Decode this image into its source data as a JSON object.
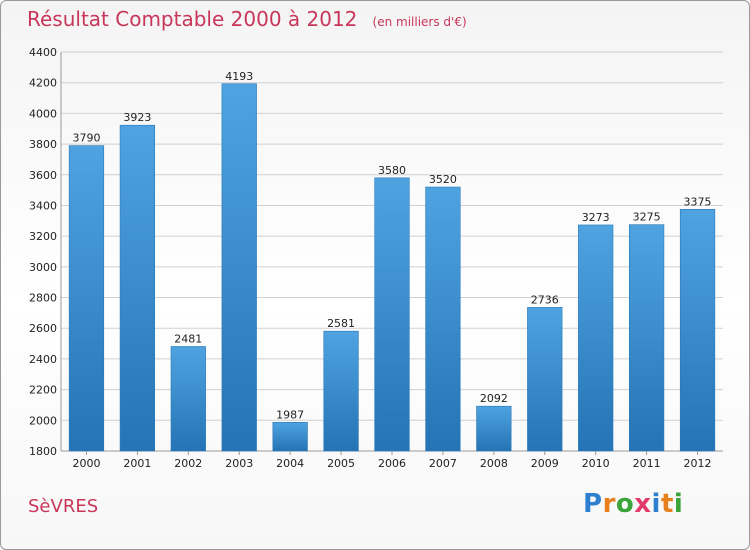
{
  "title": "Résultat Comptable 2000 à 2012",
  "subtitle": "(en milliers d'€)",
  "city": "SèVRES",
  "logo": {
    "letters": [
      "P",
      "r",
      "o",
      "x",
      "i",
      "t",
      "i"
    ],
    "colors": [
      "#2f7fd0",
      "#e8801e",
      "#3aa33a",
      "#e23a6a",
      "#2f7fd0",
      "#e8801e",
      "#3aa33a"
    ]
  },
  "colors": {
    "bar": "#4fa3e0",
    "bar_dark": "#2574b5",
    "title": "#c8365a",
    "grid": "#d0d0d0"
  },
  "chart_data": {
    "type": "bar",
    "title": "Résultat Comptable 2000 à 2012",
    "subtitle": "(en milliers d'€)",
    "categories": [
      "2000",
      "2001",
      "2002",
      "2003",
      "2004",
      "2005",
      "2006",
      "2007",
      "2008",
      "2009",
      "2010",
      "2011",
      "2012"
    ],
    "values": [
      3790,
      3923,
      2481,
      4193,
      1987,
      2581,
      3580,
      3520,
      2092,
      2736,
      3273,
      3275,
      3375
    ],
    "ylim": [
      1800,
      4400
    ],
    "yticks": [
      1800,
      2000,
      2200,
      2400,
      2600,
      2800,
      3000,
      3200,
      3400,
      3600,
      3800,
      4000,
      4200,
      4400
    ],
    "grid": true,
    "data_labels": true
  }
}
